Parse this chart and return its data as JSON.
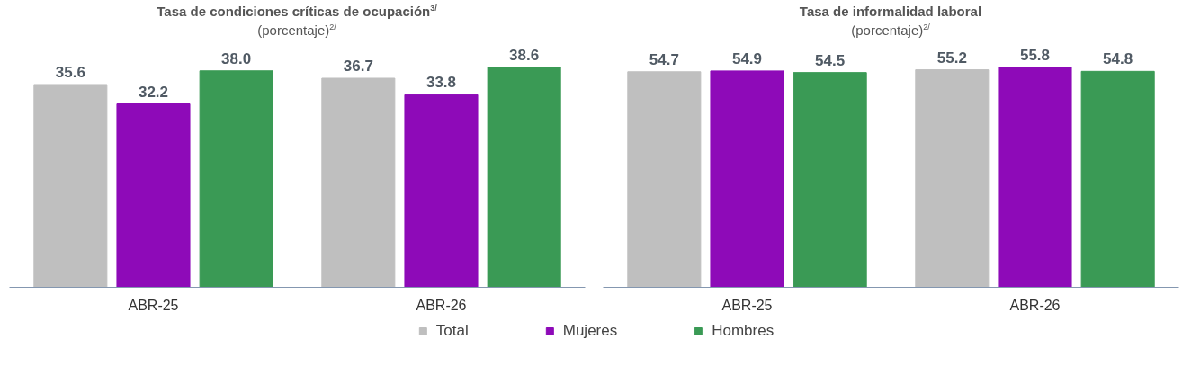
{
  "chart_data": [
    {
      "type": "bar",
      "title": "Tasa de condiciones críticas de ocupación$^{3/}$",
      "subtitle": "(porcentaje)$^{2/}$",
      "categories": [
        "ABR-25",
        "ABR-26"
      ],
      "grid": false,
      "legend": "bottom",
      "series": [
        {
          "name": "Total",
          "color": "#bfbfbf",
          "values": [
            35.6,
            36.7
          ],
          "value_labels": [
            "35.6",
            "36.7"
          ]
        },
        {
          "name": "Mujeres",
          "color": "#8e0ab8",
          "values": [
            32.2,
            33.8
          ],
          "value_labels": [
            "32.2",
            "33.8"
          ]
        },
        {
          "name": "Hombres",
          "color": "#3a9a55",
          "values": [
            38.0,
            38.6
          ],
          "value_labels": [
            "38.0",
            "38.6"
          ]
        }
      ]
    },
    {
      "type": "bar",
      "title": "Tasa de informalidad laboral",
      "subtitle": "(porcentaje)$^{2/}$",
      "categories": [
        "ABR-25",
        "ABR-26"
      ],
      "grid": false,
      "series": [
        {
          "color": "#bfbfbf",
          "values": [
            54.7,
            55.2
          ],
          "value_labels": [
            "54.7",
            "55.2"
          ]
        },
        {
          "color": "#8e0ab8",
          "values": [
            54.9,
            55.8
          ],
          "value_labels": [
            "54.9",
            "55.8"
          ]
        },
        {
          "color": "#3a9a55",
          "values": [
            54.5,
            54.8
          ],
          "value_labels": [
            "54.5",
            "54.8"
          ]
        }
      ]
    }
  ]
}
